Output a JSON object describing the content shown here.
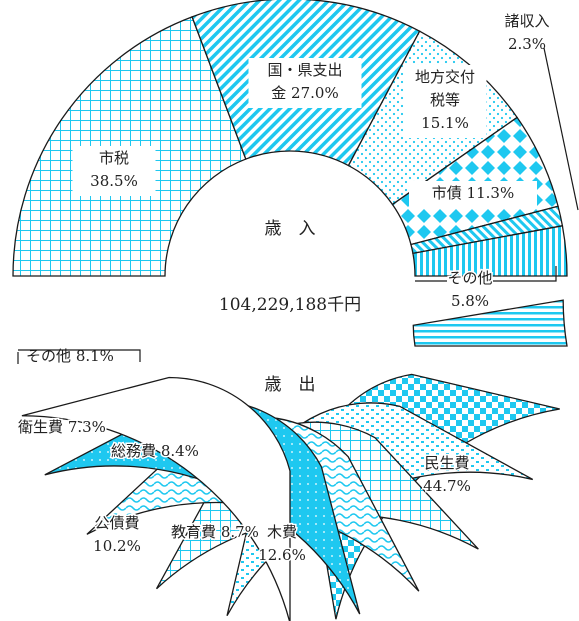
{
  "chart_data": [
    {
      "type": "pie",
      "title": "歳　入",
      "total": "104,229,188千円",
      "slices": [
        {
          "label_lines": [
            "国・県支出",
            "金 27.0%"
          ],
          "value": 27.0,
          "color": "#1ec8f0",
          "pattern": "diag"
        },
        {
          "label_lines": [
            "地方交付",
            "税等",
            "15.1%"
          ],
          "value": 15.1,
          "color": "#1ec8f0",
          "pattern": "dots"
        },
        {
          "label_lines": [
            "市債 11.3%"
          ],
          "value": 11.3,
          "color": "#1ec8f0",
          "pattern": "diamond"
        },
        {
          "label_lines": [
            "諸収入",
            "2.3%"
          ],
          "value": 2.3,
          "color": "#1ec8f0",
          "pattern": "rdiag"
        },
        {
          "label_lines": [
            "その他",
            "5.8%"
          ],
          "value": 5.8,
          "color": "#1ec8f0",
          "pattern": "vlines"
        },
        {
          "label_lines": [
            "市税",
            "38.5%"
          ],
          "value": 38.5,
          "color": "#1ec8f0",
          "pattern": "grid"
        }
      ]
    },
    {
      "type": "pie",
      "title": "歳　出",
      "slices": [
        {
          "label_lines": [
            "民生費",
            "44.7%"
          ],
          "value": 44.7,
          "color": "#1ec8f0",
          "pattern": "hlines"
        },
        {
          "label_lines": [
            "木費",
            "12.6%"
          ],
          "value": 12.6,
          "color": "#1ec8f0",
          "pattern": "check"
        },
        {
          "label_lines": [
            "教育費 8.7%"
          ],
          "value": 8.7,
          "color": "#1ec8f0",
          "pattern": "dashes"
        },
        {
          "label_lines": [
            "公債費",
            "10.2%"
          ],
          "value": 10.2,
          "color": "#1ec8f0",
          "pattern": "grid"
        },
        {
          "label_lines": [
            "総務費 8.4%"
          ],
          "value": 8.4,
          "color": "#1ec8f0",
          "pattern": "waves"
        },
        {
          "label_lines": [
            "衛生費 7.3%"
          ],
          "value": 7.3,
          "color": "#1ec8f0",
          "pattern": "solid"
        },
        {
          "label_lines": [
            "その他 8.1%"
          ],
          "value": 8.1,
          "color": "#1ec8f0",
          "pattern": "none"
        }
      ]
    }
  ]
}
